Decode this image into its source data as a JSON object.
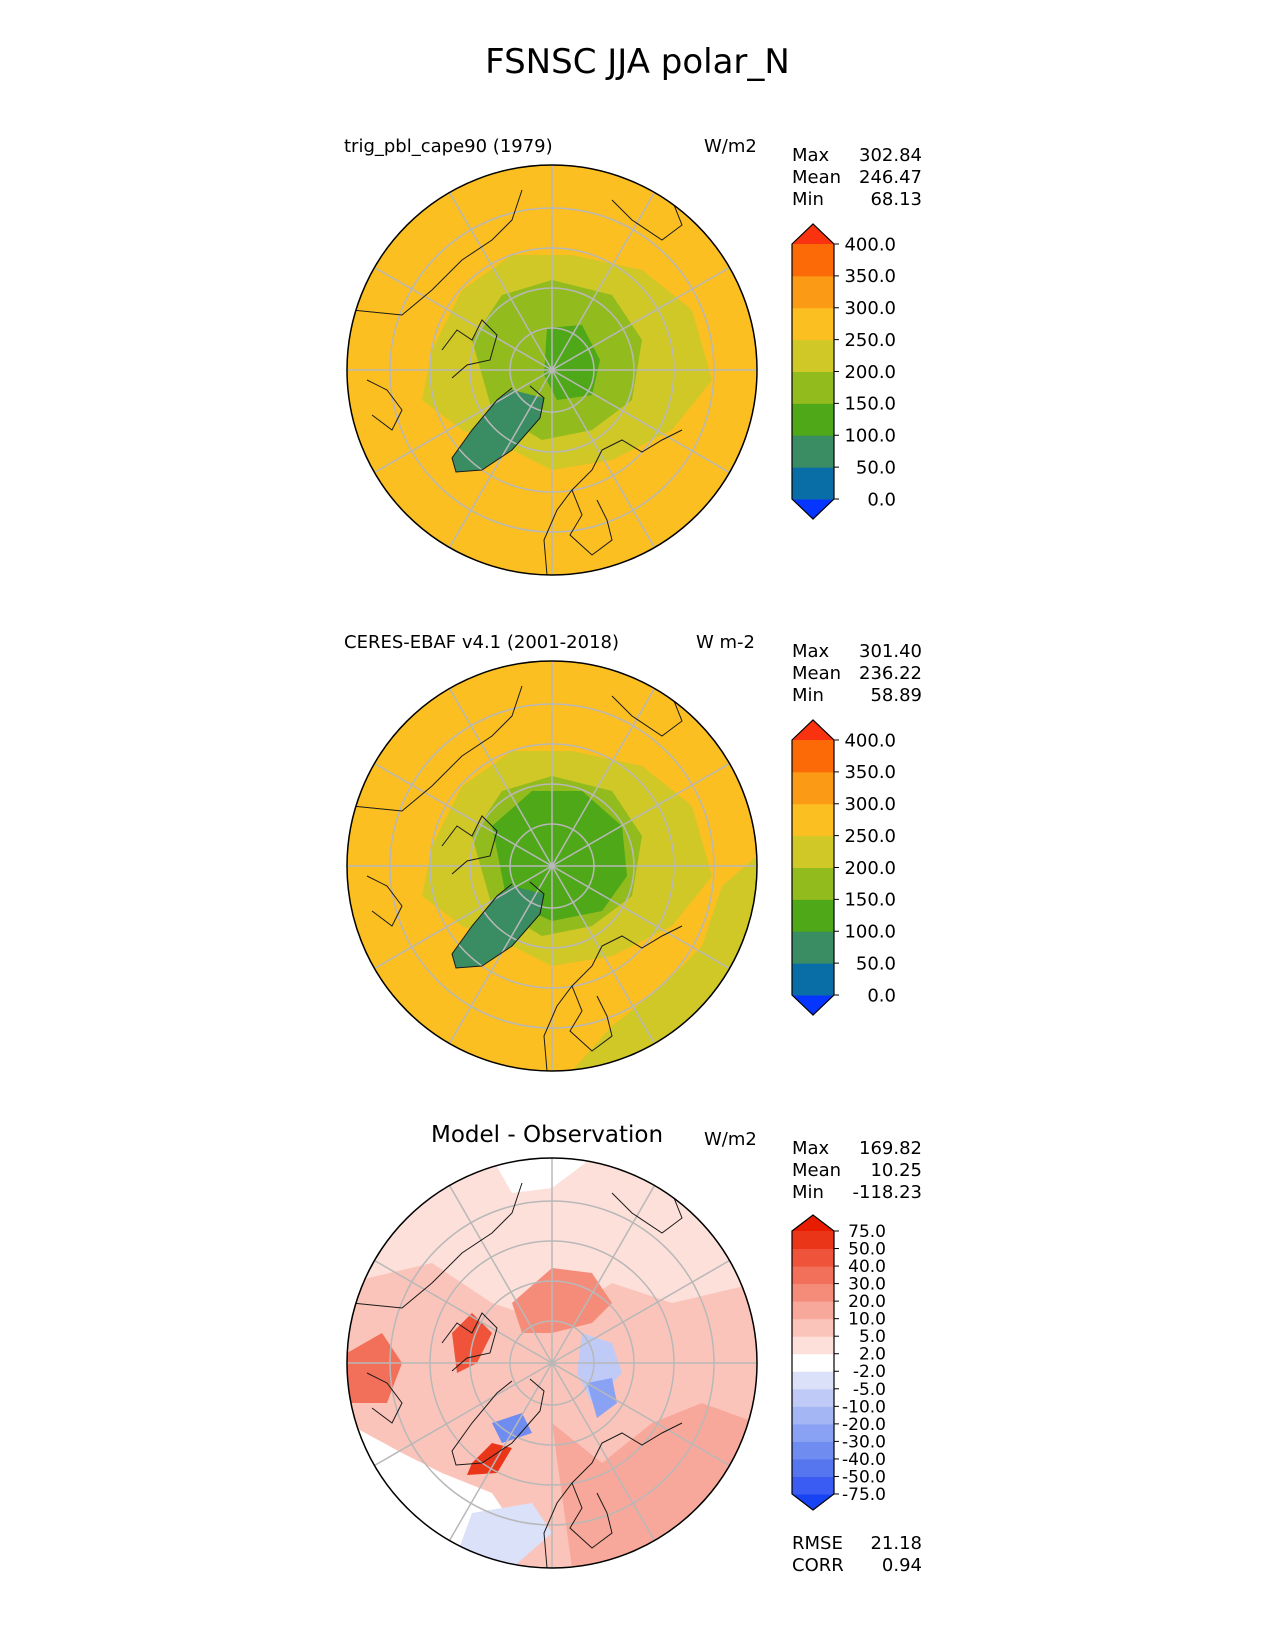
{
  "title": "FSNSC JJA polar_N",
  "panels": [
    {
      "left_title": "trig_pbl_cape90 (1979)",
      "units": "W/m2",
      "stats": [
        {
          "label": "Max",
          "value": "302.84"
        },
        {
          "label": "Mean",
          "value": "246.47"
        },
        {
          "label": "Min",
          "value": "68.13"
        }
      ]
    },
    {
      "left_title": "CERES-EBAF v4.1 (2001-2018)",
      "units": "W m-2",
      "stats": [
        {
          "label": "Max",
          "value": "301.40"
        },
        {
          "label": "Mean",
          "value": "236.22"
        },
        {
          "label": "Min",
          "value": "58.89"
        }
      ]
    },
    {
      "center_title": "Model - Observation",
      "units": "W/m2",
      "stats": [
        {
          "label": "Max",
          "value": "169.82"
        },
        {
          "label": "Mean",
          "value": "10.25"
        },
        {
          "label": "Min",
          "value": "-118.23"
        }
      ],
      "extra_stats": [
        {
          "label": "RMSE",
          "value": "21.18"
        },
        {
          "label": "CORR",
          "value": "0.94"
        }
      ]
    }
  ],
  "colorbars": {
    "field": {
      "levels": [
        "0.0",
        "50.0",
        "100.0",
        "150.0",
        "200.0",
        "250.0",
        "300.0",
        "350.0",
        "400.0"
      ],
      "colors": [
        "#0535ff",
        "#0a6ea6",
        "#3a8c63",
        "#4ea818",
        "#92bb1e",
        "#cfc827",
        "#fbbf22",
        "#fb9a14",
        "#fb6a07",
        "#fa3210"
      ]
    },
    "diff": {
      "levels": [
        "-75.0",
        "-50.0",
        "-40.0",
        "-30.0",
        "-20.0",
        "-10.0",
        "-5.0",
        "-2.0",
        "2.0",
        "5.0",
        "10.0",
        "20.0",
        "30.0",
        "40.0",
        "50.0",
        "75.0"
      ],
      "colors": [
        "#1843f5",
        "#3a5cf2",
        "#5676ef",
        "#6f8cf1",
        "#8aa2f3",
        "#a4b6f4",
        "#bfcbf6",
        "#dbe1f9",
        "#ffffff",
        "#fde0da",
        "#fbc4ba",
        "#f8a89a",
        "#f58c7a",
        "#f2705a",
        "#ef5339",
        "#eb3518",
        "#e81c00"
      ]
    }
  },
  "chart_data": [
    {
      "type": "heatmap",
      "projection": "north polar stereographic",
      "title": "trig_pbl_cape90 (1979)",
      "units": "W/m2",
      "stats": {
        "max": 302.84,
        "mean": 246.47,
        "min": 68.13
      },
      "color_levels": [
        0,
        50,
        100,
        150,
        200,
        250,
        300,
        350,
        400
      ]
    },
    {
      "type": "heatmap",
      "projection": "north polar stereographic",
      "title": "CERES-EBAF v4.1 (2001-2018)",
      "units": "W m-2",
      "stats": {
        "max": 301.4,
        "mean": 236.22,
        "min": 58.89
      },
      "color_levels": [
        0,
        50,
        100,
        150,
        200,
        250,
        300,
        350,
        400
      ]
    },
    {
      "type": "heatmap",
      "projection": "north polar stereographic",
      "title": "Model - Observation",
      "units": "W/m2",
      "stats": {
        "max": 169.82,
        "mean": 10.25,
        "min": -118.23,
        "rmse": 21.18,
        "corr": 0.94
      },
      "color_levels": [
        -75,
        -50,
        -40,
        -30,
        -20,
        -10,
        -5,
        -2,
        2,
        5,
        10,
        20,
        30,
        40,
        50,
        75
      ]
    }
  ]
}
